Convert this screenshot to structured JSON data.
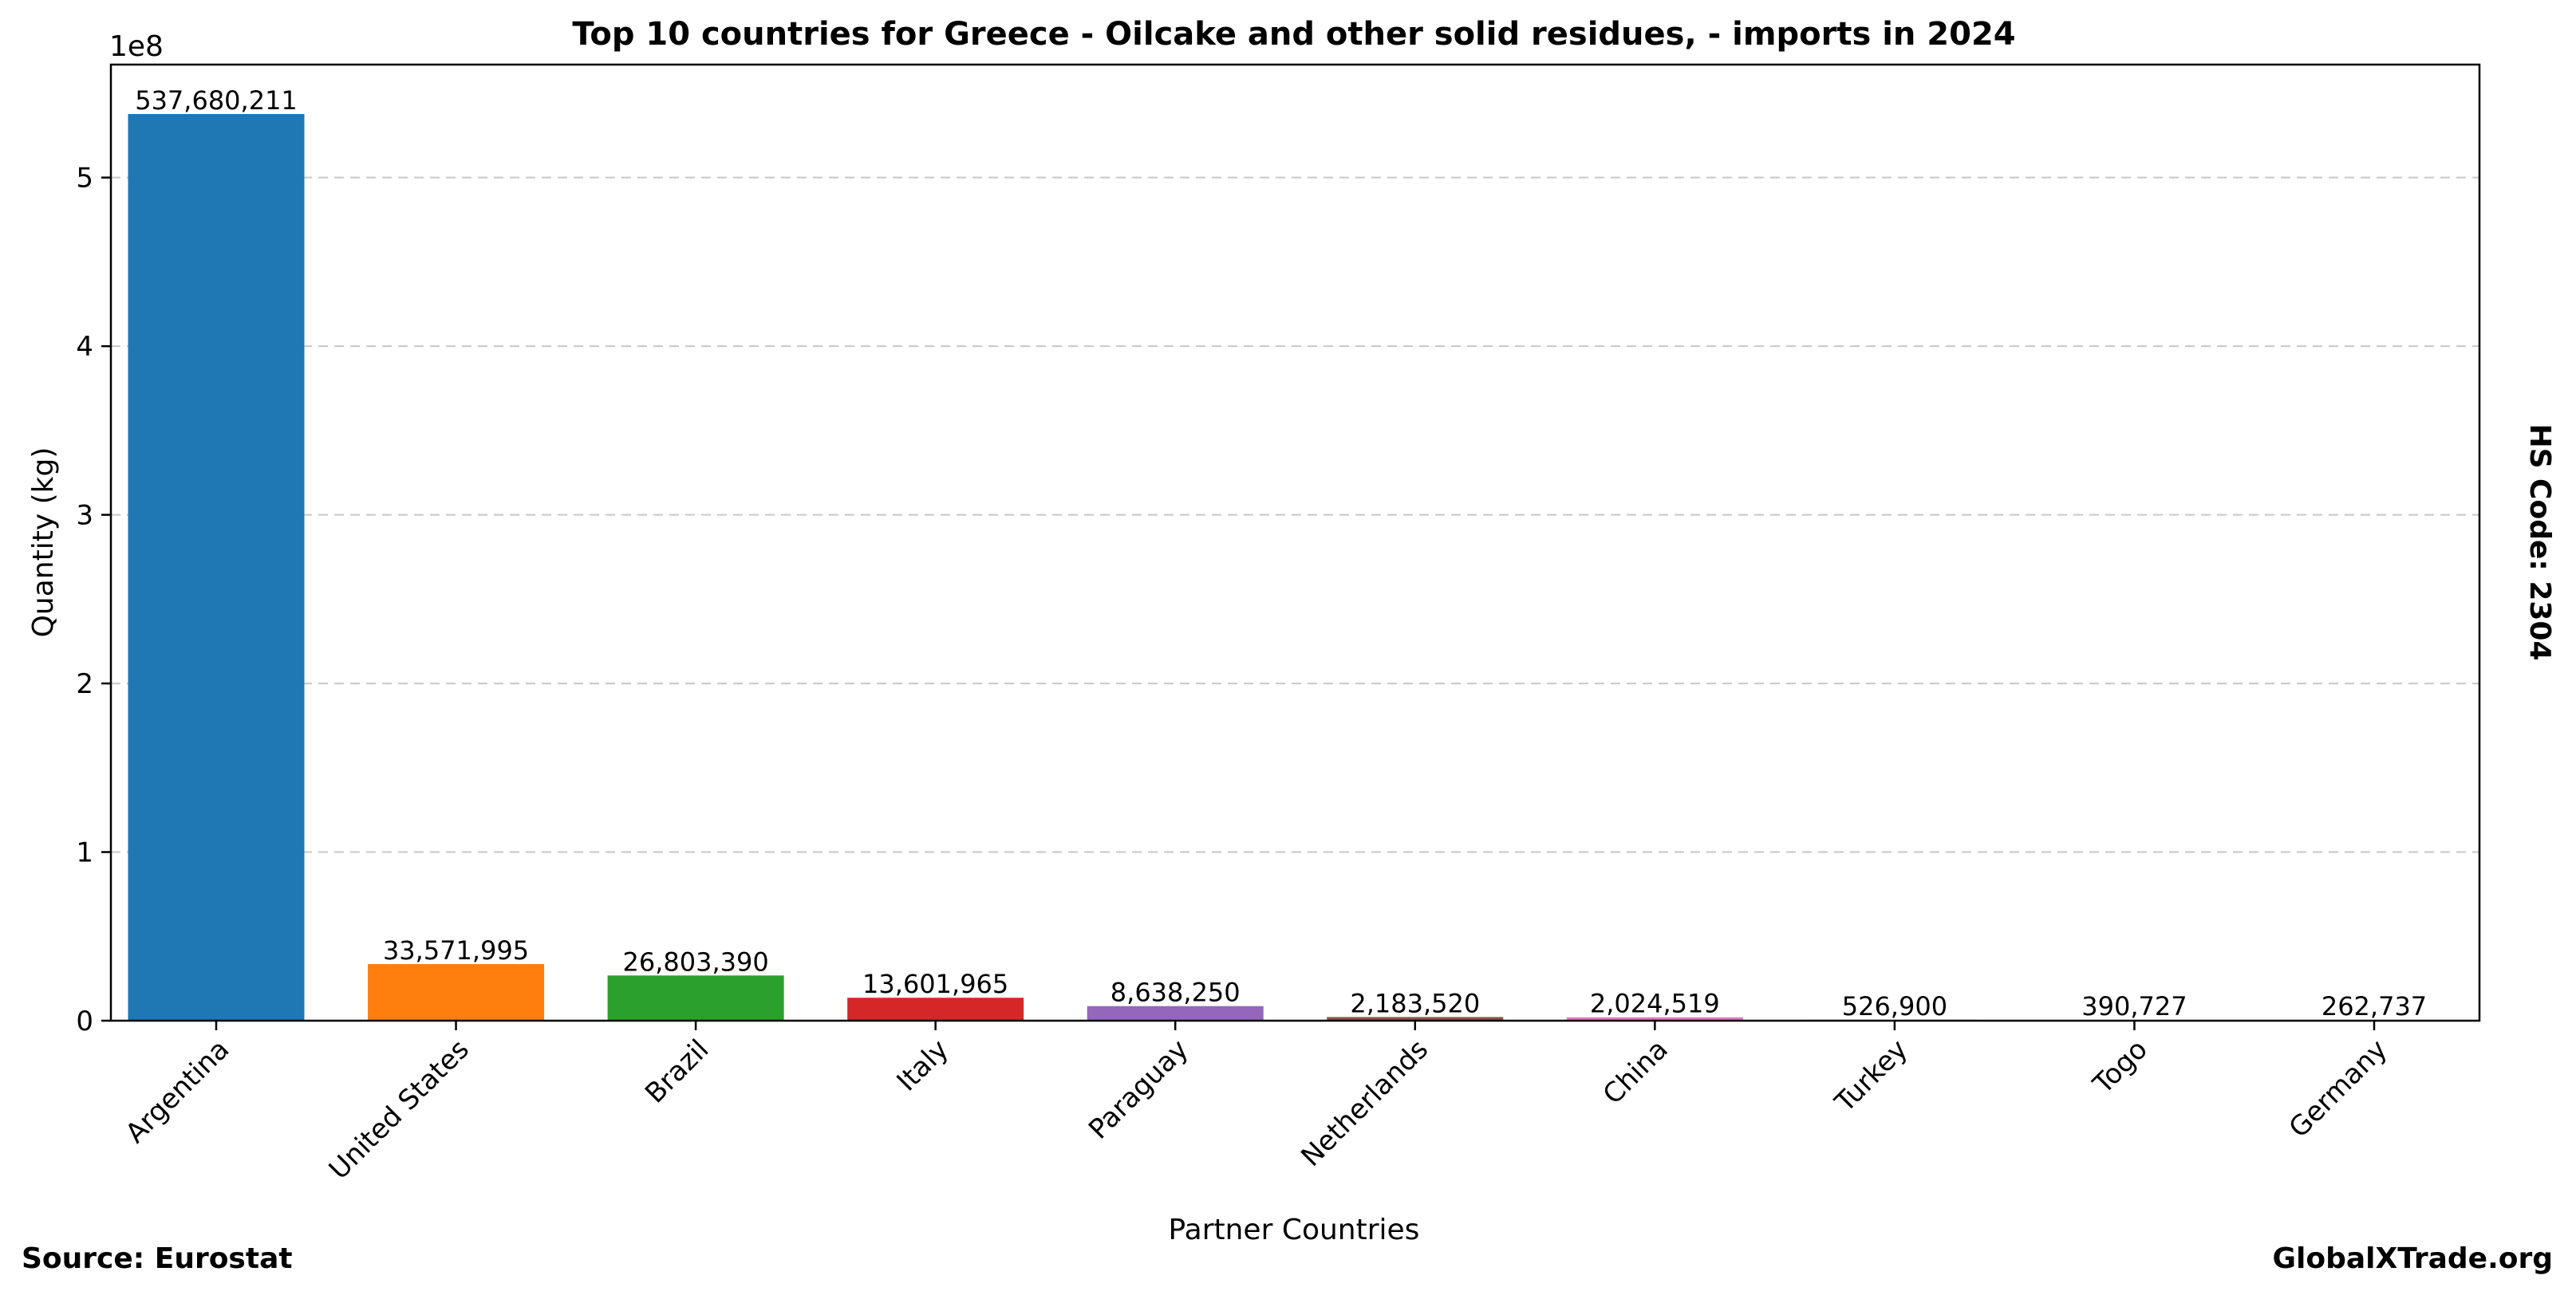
{
  "chart_data": {
    "type": "bar",
    "title": "Top 10 countries for Greece - Oilcake and other solid residues, - imports in 2024",
    "xlabel": "Partner Countries",
    "ylabel": "Quantity (kg)",
    "y_scale_label": "1e8",
    "ylim": [
      0,
      567000000
    ],
    "y_ticks": [
      0,
      100000000,
      200000000,
      300000000,
      400000000,
      500000000
    ],
    "y_tick_labels": [
      "0",
      "1",
      "2",
      "3",
      "4",
      "5"
    ],
    "grid": true,
    "categories": [
      "Argentina",
      "United States",
      "Brazil",
      "Italy",
      "Paraguay",
      "Netherlands",
      "China",
      "Turkey",
      "Togo",
      "Germany"
    ],
    "values": [
      537680211,
      33571995,
      26803390,
      13601965,
      8638250,
      2183520,
      2024519,
      526900,
      390727,
      262737
    ],
    "value_labels": [
      "537,680,211",
      "33,571,995",
      "26,803,390",
      "13,601,965",
      "8,638,250",
      "2,183,520",
      "2,024,519",
      "526,900",
      "390,727",
      "262,737"
    ],
    "colors": [
      "#1f77b4",
      "#ff7f0e",
      "#2ca02c",
      "#d62728",
      "#9467bd",
      "#8c564b",
      "#e377c2",
      "#7f7f7f",
      "#bcbd22",
      "#17becf"
    ]
  },
  "side_label": "HS Code: 2304",
  "footer": {
    "source": "Source: Eurostat",
    "brand": "GlobalXTrade.org"
  }
}
